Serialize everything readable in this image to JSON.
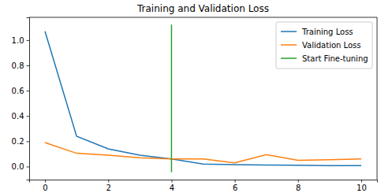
{
  "chart_data": {
    "type": "line",
    "title": "Training and Validation Loss",
    "x": [
      0,
      1,
      2,
      3,
      4,
      5,
      6,
      7,
      8,
      9,
      10
    ],
    "series": [
      {
        "name": "Training Loss",
        "color": "#1f77b4",
        "values": [
          1.07,
          0.24,
          0.14,
          0.09,
          0.06,
          0.02,
          0.015,
          0.012,
          0.01,
          0.008,
          0.008
        ]
      },
      {
        "name": "Validation Loss",
        "color": "#ff7f0e",
        "values": [
          0.19,
          0.105,
          0.09,
          0.07,
          0.06,
          0.06,
          0.03,
          0.095,
          0.05,
          0.055,
          0.06
        ]
      },
      {
        "name": "Start Fine-tuning",
        "color": "#2ca02c",
        "x": [
          4,
          4
        ],
        "values": [
          -0.045,
          1.123
        ]
      }
    ],
    "xlim": [
      -0.5,
      10.5
    ],
    "ylim": [
      -0.103,
      1.18
    ],
    "xticks": [
      0,
      2,
      4,
      6,
      8,
      10
    ],
    "yticks": [
      {
        "value": 0,
        "label": "0.0"
      },
      {
        "value": 0.2,
        "label": "0.2"
      },
      {
        "value": 0.4,
        "label": "0.4"
      },
      {
        "value": 0.6,
        "label": "0.6"
      },
      {
        "value": 0.8,
        "label": "0.8"
      },
      {
        "value": 1.0,
        "label": "1.0"
      }
    ],
    "legend": "upper right",
    "grid": false
  }
}
